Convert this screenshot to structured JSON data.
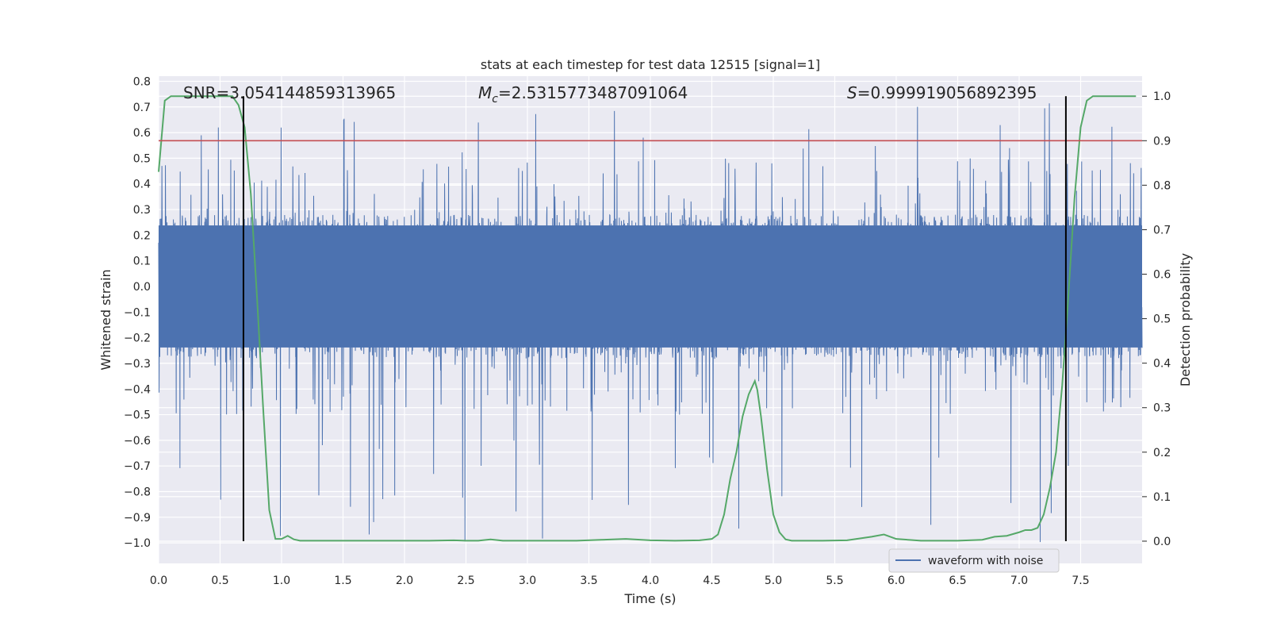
{
  "chart_data": {
    "type": "line",
    "title": "stats at each timestep for test data 12515 [signal=1]",
    "xlabel": "Time (s)",
    "ylabel": "Whitened strain",
    "y2label": "Detection probability",
    "xlim": [
      0.0,
      8.0
    ],
    "ylim": [
      -1.08,
      0.82
    ],
    "y2lim": [
      -0.05,
      1.045
    ],
    "xticks": [
      "0.0",
      "0.5",
      "1.0",
      "1.5",
      "2.0",
      "2.5",
      "3.0",
      "3.5",
      "4.0",
      "4.5",
      "5.0",
      "5.5",
      "6.0",
      "6.5",
      "7.0",
      "7.5"
    ],
    "yticks": [
      "0.8",
      "0.7",
      "0.6",
      "0.5",
      "0.4",
      "0.3",
      "0.2",
      "0.1",
      "0.0",
      "−0.1",
      "−0.2",
      "−0.3",
      "−0.4",
      "−0.5",
      "−0.6",
      "−0.7",
      "−0.8",
      "−0.9",
      "−1.0"
    ],
    "y2ticks": [
      "1.0",
      "0.9",
      "0.8",
      "0.7",
      "0.6",
      "0.5",
      "0.4",
      "0.3",
      "0.2",
      "0.1",
      "0.0"
    ],
    "grid": true,
    "legend_location": "lower-right",
    "annotations": {
      "snr": "SNR=3.054144859313965",
      "mc_symbol": "M",
      "mc_sub": "c",
      "mc_value": "=2.5315773487091064",
      "s_symbol": "S",
      "s_value": "=0.999919056892395"
    },
    "series": [
      {
        "name": "waveform with noise",
        "axis": "left",
        "color": "#4c72b0",
        "sample_rate_hz": 2048,
        "x_range": [
          0.0,
          8.0
        ],
        "typical_envelope": [
          -0.28,
          0.28
        ],
        "peak_range": [
          -1.0,
          0.72
        ]
      },
      {
        "axis": "right",
        "color": "#55a868",
        "x": [
          0.0,
          0.05,
          0.1,
          0.15,
          0.2,
          0.3,
          0.4,
          0.5,
          0.6,
          0.65,
          0.7,
          0.75,
          0.8,
          0.85,
          0.9,
          0.95,
          1.0,
          1.05,
          1.1,
          1.15,
          1.2,
          1.4,
          1.6,
          1.8,
          2.0,
          2.2,
          2.4,
          2.5,
          2.6,
          2.7,
          2.8,
          3.0,
          3.2,
          3.4,
          3.6,
          3.8,
          4.0,
          4.2,
          4.4,
          4.5,
          4.55,
          4.6,
          4.65,
          4.7,
          4.75,
          4.8,
          4.85,
          4.87,
          4.9,
          4.95,
          5.0,
          5.05,
          5.1,
          5.15,
          5.2,
          5.4,
          5.6,
          5.8,
          5.9,
          6.0,
          6.2,
          6.5,
          6.7,
          6.8,
          6.9,
          7.0,
          7.05,
          7.1,
          7.15,
          7.2,
          7.25,
          7.3,
          7.35,
          7.4,
          7.45,
          7.5,
          7.55,
          7.6,
          7.7,
          7.8,
          7.95
        ],
        "y": [
          0.83,
          0.99,
          1.0,
          1.0,
          1.0,
          1.0,
          1.0,
          1.0,
          1.0,
          0.98,
          0.93,
          0.78,
          0.55,
          0.3,
          0.07,
          0.005,
          0.005,
          0.012,
          0.004,
          0.001,
          0.001,
          0.001,
          0.001,
          0.001,
          0.001,
          0.001,
          0.002,
          0.001,
          0.001,
          0.004,
          0.001,
          0.001,
          0.001,
          0.001,
          0.003,
          0.005,
          0.002,
          0.001,
          0.002,
          0.005,
          0.015,
          0.06,
          0.14,
          0.2,
          0.28,
          0.33,
          0.36,
          0.34,
          0.28,
          0.16,
          0.06,
          0.02,
          0.004,
          0.001,
          0.001,
          0.001,
          0.002,
          0.01,
          0.015,
          0.005,
          0.001,
          0.001,
          0.003,
          0.01,
          0.012,
          0.02,
          0.025,
          0.025,
          0.03,
          0.06,
          0.12,
          0.2,
          0.35,
          0.55,
          0.77,
          0.93,
          0.99,
          1.0,
          1.0,
          1.0,
          1.0
        ]
      },
      {
        "axis": "right",
        "color": "#c44e52",
        "type": "hline",
        "y": 0.9
      },
      {
        "axis": "right",
        "color": "#000000",
        "type": "vlines",
        "x": [
          0.69,
          7.38
        ]
      }
    ]
  }
}
